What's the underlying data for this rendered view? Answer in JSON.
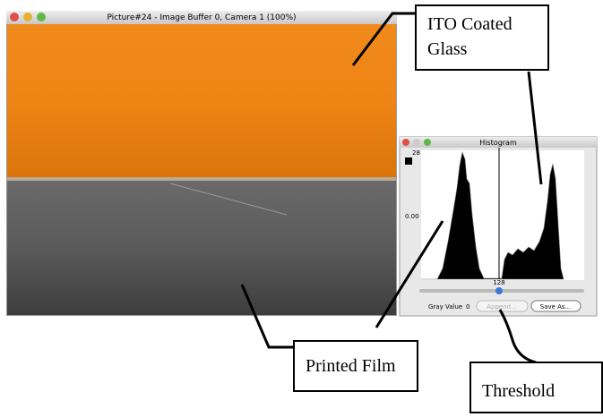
{
  "main_window": {
    "title": "Picture#24 - Image Buffer 0, Camera 1  (100%)"
  },
  "histogram_window": {
    "title": "Histogram",
    "y_top_label": "28",
    "y_mid_label": "0.00",
    "threshold_label": "128",
    "gray_value_label": "Gray Value",
    "gray_value": 0,
    "buttons": [
      "Append...",
      "Save As..."
    ]
  },
  "callouts": [
    "ITO Coated Glass",
    "Printed Film",
    "Threshold"
  ]
}
